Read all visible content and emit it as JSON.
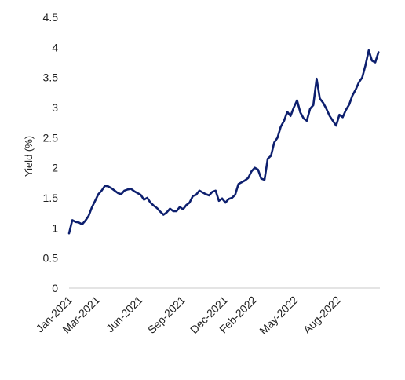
{
  "chart_data": {
    "type": "line",
    "title": "",
    "xlabel": "",
    "ylabel": "Yield (%)",
    "ylim": [
      0,
      4.5
    ],
    "yticks": [
      "0",
      "0.5",
      "1",
      "1.5",
      "2",
      "2.5",
      "3",
      "3.5",
      "4",
      "4.5"
    ],
    "xlim": [
      "2021-01-01",
      "2022-10-31"
    ],
    "xticks": [
      {
        "date": "2021-01-01",
        "label": "Jan-2021"
      },
      {
        "date": "2021-03-01",
        "label": "Mar-2021"
      },
      {
        "date": "2021-06-01",
        "label": "Jun-2021"
      },
      {
        "date": "2021-09-01",
        "label": "Sep-2021"
      },
      {
        "date": "2021-12-01",
        "label": "Dec-2021"
      },
      {
        "date": "2022-02-01",
        "label": "Feb-2022"
      },
      {
        "date": "2022-05-01",
        "label": "May-2022"
      },
      {
        "date": "2022-08-01",
        "label": "Aug-2022"
      }
    ],
    "grid": false,
    "legend": "none",
    "line_color": "#0d1f6e",
    "series": [
      {
        "x": [
          "2021-01-01",
          "2021-01-08",
          "2021-01-15",
          "2021-01-22",
          "2021-01-29",
          "2021-02-05",
          "2021-02-12",
          "2021-02-19",
          "2021-02-26",
          "2021-03-05",
          "2021-03-12",
          "2021-03-19",
          "2021-03-26",
          "2021-04-02",
          "2021-04-09",
          "2021-04-16",
          "2021-04-23",
          "2021-04-30",
          "2021-05-07",
          "2021-05-14",
          "2021-05-21",
          "2021-05-28",
          "2021-06-04",
          "2021-06-11",
          "2021-06-18",
          "2021-06-25",
          "2021-07-02",
          "2021-07-09",
          "2021-07-16",
          "2021-07-23",
          "2021-07-30",
          "2021-08-06",
          "2021-08-13",
          "2021-08-20",
          "2021-08-27",
          "2021-09-03",
          "2021-09-10",
          "2021-09-17",
          "2021-09-24",
          "2021-10-01",
          "2021-10-08",
          "2021-10-15",
          "2021-10-22",
          "2021-10-29",
          "2021-11-05",
          "2021-11-12",
          "2021-11-19",
          "2021-11-26",
          "2021-12-03",
          "2021-12-10",
          "2021-12-17",
          "2021-12-24",
          "2021-12-31",
          "2022-01-07",
          "2022-01-14",
          "2022-01-21",
          "2022-01-28",
          "2022-02-04",
          "2022-02-11",
          "2022-02-18",
          "2022-02-25",
          "2022-03-04",
          "2022-03-11",
          "2022-03-18",
          "2022-03-25",
          "2022-04-01",
          "2022-04-08",
          "2022-04-15",
          "2022-04-22",
          "2022-04-29",
          "2022-05-06",
          "2022-05-13",
          "2022-05-20",
          "2022-05-27",
          "2022-06-03",
          "2022-06-10",
          "2022-06-17",
          "2022-06-24",
          "2022-07-01",
          "2022-07-08",
          "2022-07-15",
          "2022-07-22",
          "2022-07-29",
          "2022-08-05",
          "2022-08-12",
          "2022-08-19",
          "2022-08-26",
          "2022-09-02",
          "2022-09-09",
          "2022-09-16",
          "2022-09-23",
          "2022-09-30",
          "2022-10-07",
          "2022-10-14",
          "2022-10-21",
          "2022-10-28"
        ],
        "values": [
          0.91,
          1.13,
          1.1,
          1.09,
          1.06,
          1.12,
          1.2,
          1.34,
          1.45,
          1.56,
          1.62,
          1.7,
          1.69,
          1.66,
          1.62,
          1.58,
          1.56,
          1.62,
          1.64,
          1.65,
          1.61,
          1.58,
          1.55,
          1.47,
          1.5,
          1.42,
          1.37,
          1.33,
          1.27,
          1.22,
          1.26,
          1.32,
          1.28,
          1.28,
          1.35,
          1.31,
          1.38,
          1.42,
          1.53,
          1.55,
          1.62,
          1.59,
          1.56,
          1.54,
          1.6,
          1.62,
          1.45,
          1.49,
          1.42,
          1.48,
          1.5,
          1.55,
          1.73,
          1.76,
          1.79,
          1.83,
          1.94,
          2.0,
          1.97,
          1.82,
          1.8,
          2.15,
          2.2,
          2.42,
          2.5,
          2.68,
          2.78,
          2.93,
          2.86,
          3.0,
          3.12,
          2.92,
          2.82,
          2.78,
          2.98,
          3.04,
          3.48,
          3.15,
          3.08,
          2.98,
          2.86,
          2.78,
          2.7,
          2.88,
          2.84,
          2.96,
          3.05,
          3.2,
          3.3,
          3.42,
          3.5,
          3.7,
          3.95,
          3.78,
          3.75,
          3.92
        ]
      }
    ]
  }
}
